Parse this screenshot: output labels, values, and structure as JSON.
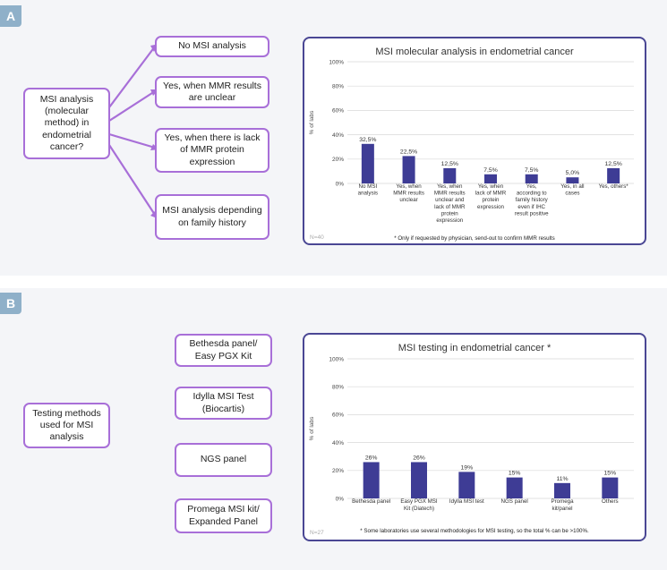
{
  "panels": [
    {
      "label": "A",
      "question": "MSI analysis (molecular method) in endometrial cancer?",
      "options": [
        "No MSI analysis",
        "Yes, when MMR results are unclear",
        "Yes, when there is lack of MMR protein expression",
        "MSI analysis depending on family history"
      ],
      "n_label": "N=40",
      "footnote": "* Only if requested by physician, send-out to confirm MMR results"
    },
    {
      "label": "B",
      "question": "Testing methods used for MSI analysis",
      "options": [
        "Bethesda panel/ Easy PGX Kit",
        "Idylla MSI Test (Biocartis)",
        "NGS panel",
        "Promega MSI kit/ Expanded Panel"
      ],
      "n_label": "N=27",
      "footnote": "* Some laboratories use several methodologies for MSI testing, so the total % can be >100%."
    }
  ],
  "colors": {
    "bar": "#3e3c95",
    "connector": "#a86fd8",
    "frame": "#4a4794",
    "panel_label": "#8fb0c9"
  },
  "chart_data": [
    {
      "type": "bar",
      "title": "MSI molecular analysis in endometrial cancer",
      "ylabel": "% of labs",
      "ylim": [
        0,
        100
      ],
      "yticks": [
        "0%",
        "20%",
        "40%",
        "60%",
        "80%",
        "100%"
      ],
      "categories": [
        [
          "No MSI",
          "analysis"
        ],
        [
          "Yes, when",
          "MMR results",
          "unclear"
        ],
        [
          "Yes, when",
          "MMR results",
          "unclear and",
          "lack of MMR",
          "protein",
          "expression"
        ],
        [
          "Yes, when",
          "lack of MMR",
          "protein",
          "expression"
        ],
        [
          "Yes,",
          "according to",
          "family history",
          "even if IHC",
          "result positive"
        ],
        [
          "Yes, in all",
          "cases"
        ],
        [
          "Yes, others*"
        ]
      ],
      "values": [
        32.5,
        22.5,
        12.5,
        7.5,
        7.5,
        5.0,
        12.5
      ],
      "value_labels": [
        "32,5%",
        "22,5%",
        "12,5%",
        "7,5%",
        "7,5%",
        "5,0%",
        "12,5%"
      ]
    },
    {
      "type": "bar",
      "title": "MSI testing in endometrial cancer *",
      "ylabel": "% of labs",
      "ylim": [
        0,
        100
      ],
      "yticks": [
        "0%",
        "20%",
        "40%",
        "60%",
        "80%",
        "100%"
      ],
      "categories": [
        [
          "Bethesda panel"
        ],
        [
          "Easy PGX MSI",
          "Kit (Diatech)"
        ],
        [
          "Idylla MSI test"
        ],
        [
          "NGS panel"
        ],
        [
          "Promega",
          "kit/panel"
        ],
        [
          "Others"
        ]
      ],
      "values": [
        26,
        26,
        19,
        15,
        11,
        15
      ],
      "value_labels": [
        "26%",
        "26%",
        "19%",
        "15%",
        "11%",
        "15%"
      ]
    }
  ]
}
